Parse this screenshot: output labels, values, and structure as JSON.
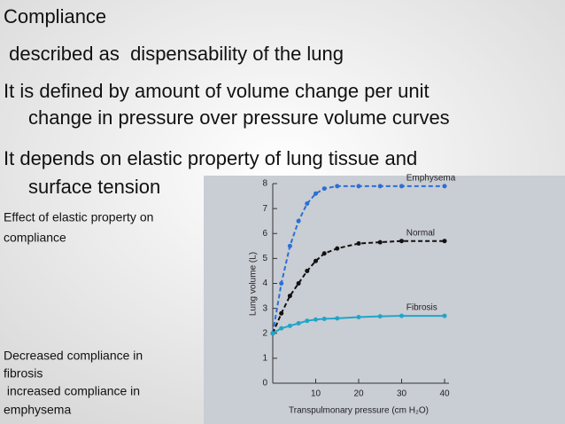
{
  "slide": {
    "title": "Compliance",
    "lines": [
      " described as  dispensability of the lung",
      "It is defined by amount of volume change per unit",
      "change in pressure  over pressure volume curves",
      "It depends on elastic property of lung tissue and",
      "surface tension"
    ],
    "notes": [
      "Effect of elastic property on",
      "compliance",
      "Decreased compliance in",
      "fibrosis",
      " increased compliance in",
      "emphysema"
    ]
  },
  "chart_data": {
    "type": "line",
    "x_label": "Transpulmonary pressure (cm H₂O)",
    "y_label": "Lung volume (L)",
    "x": [
      0,
      2,
      4,
      6,
      8,
      10,
      12,
      15,
      20,
      25,
      30,
      40
    ],
    "series": [
      {
        "name": "Emphysema",
        "color": "#2b6fd6",
        "values": [
          2,
          4,
          5.5,
          6.5,
          7.2,
          7.6,
          7.8,
          7.9,
          7.9,
          7.9,
          7.9,
          7.9
        ]
      },
      {
        "name": "Normal",
        "color": "#111111",
        "values": [
          2,
          2.8,
          3.5,
          4.0,
          4.5,
          4.9,
          5.2,
          5.4,
          5.6,
          5.65,
          5.7,
          5.7
        ]
      },
      {
        "name": "Fibrosis",
        "color": "#1ea6c9",
        "values": [
          2,
          2.2,
          2.3,
          2.4,
          2.5,
          2.55,
          2.58,
          2.6,
          2.65,
          2.68,
          2.7,
          2.7
        ]
      }
    ],
    "xlim": [
      0,
      40
    ],
    "ylim": [
      0,
      8
    ],
    "xticks": [
      10,
      20,
      30,
      40
    ],
    "yticks": [
      0,
      1,
      2,
      3,
      4,
      5,
      6,
      7,
      8
    ]
  }
}
